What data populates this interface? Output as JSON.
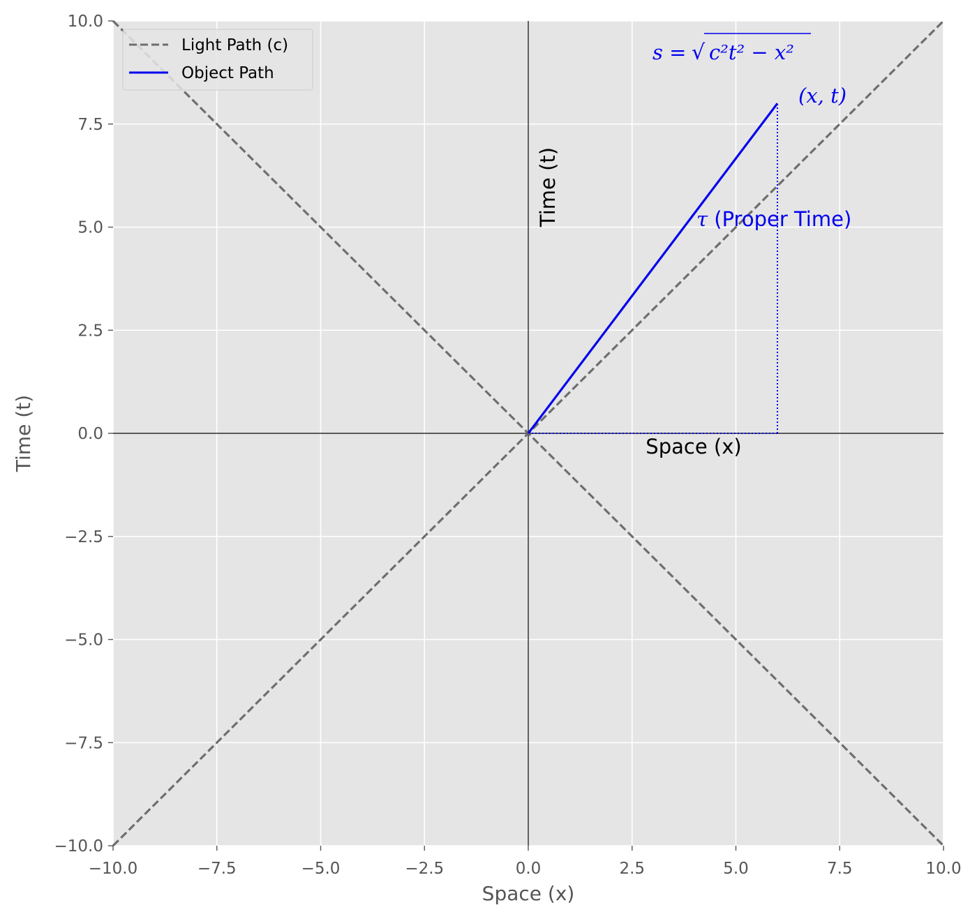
{
  "chart_data": {
    "type": "line",
    "title": "",
    "xlabel": "Space (x)",
    "ylabel": "Time (t)",
    "xlim": [
      -10,
      10
    ],
    "ylim": [
      -10,
      10
    ],
    "xticks": [
      -10,
      -7.5,
      -5,
      -2.5,
      0,
      2.5,
      5,
      7.5,
      10
    ],
    "yticks": [
      -10,
      -7.5,
      -5,
      -2.5,
      0,
      2.5,
      5,
      7.5,
      10
    ],
    "xtick_labels": [
      "−10.0",
      "−7.5",
      "−5.0",
      "−2.5",
      "0.0",
      "2.5",
      "5.0",
      "7.5",
      "10.0"
    ],
    "ytick_labels": [
      "−10.0",
      "−7.5",
      "−5.0",
      "−2.5",
      "0.0",
      "2.5",
      "5.0",
      "7.5",
      "10.0"
    ],
    "grid": true,
    "legend_position": "top-left",
    "series": [
      {
        "name": "Light Path (c)",
        "style": "dashed",
        "color": "#6e6e6e",
        "x": [
          -10,
          10
        ],
        "y": [
          -10,
          10
        ]
      },
      {
        "name": "Light Path (c)",
        "style": "dashed",
        "color": "#6e6e6e",
        "x": [
          -10,
          10
        ],
        "y": [
          10,
          -10
        ],
        "in_legend": false
      },
      {
        "name": "Object Path",
        "style": "solid",
        "color": "#0000ee",
        "x": [
          0,
          6
        ],
        "y": [
          0,
          8
        ]
      }
    ],
    "guides": [
      {
        "style": "dotted",
        "color": "#0000ee",
        "x": [
          6,
          6
        ],
        "y": [
          0,
          8
        ]
      },
      {
        "style": "dotted",
        "color": "#0000ee",
        "x": [
          0,
          6
        ],
        "y": [
          0,
          0
        ]
      }
    ],
    "legend": [
      {
        "label": "Light Path (c)",
        "style": "dashed",
        "color": "#6e6e6e"
      },
      {
        "label": "Object Path",
        "style": "solid",
        "color": "#0000ee"
      }
    ],
    "annotations": {
      "time_axis_label": "Time (t)",
      "space_axis_label": "Space (x)",
      "proper_time_symbol": "τ",
      "proper_time_text": " (Proper Time)",
      "point_label": "(x, t)",
      "formula_lhs": "s = ",
      "formula_radicand": "c²t² − x²",
      "formula_radical": "√"
    },
    "colors": {
      "background": "#e5e5e5",
      "grid": "#ffffff",
      "annotation_blue": "#0000ee",
      "light_gray": "#6e6e6e"
    }
  }
}
